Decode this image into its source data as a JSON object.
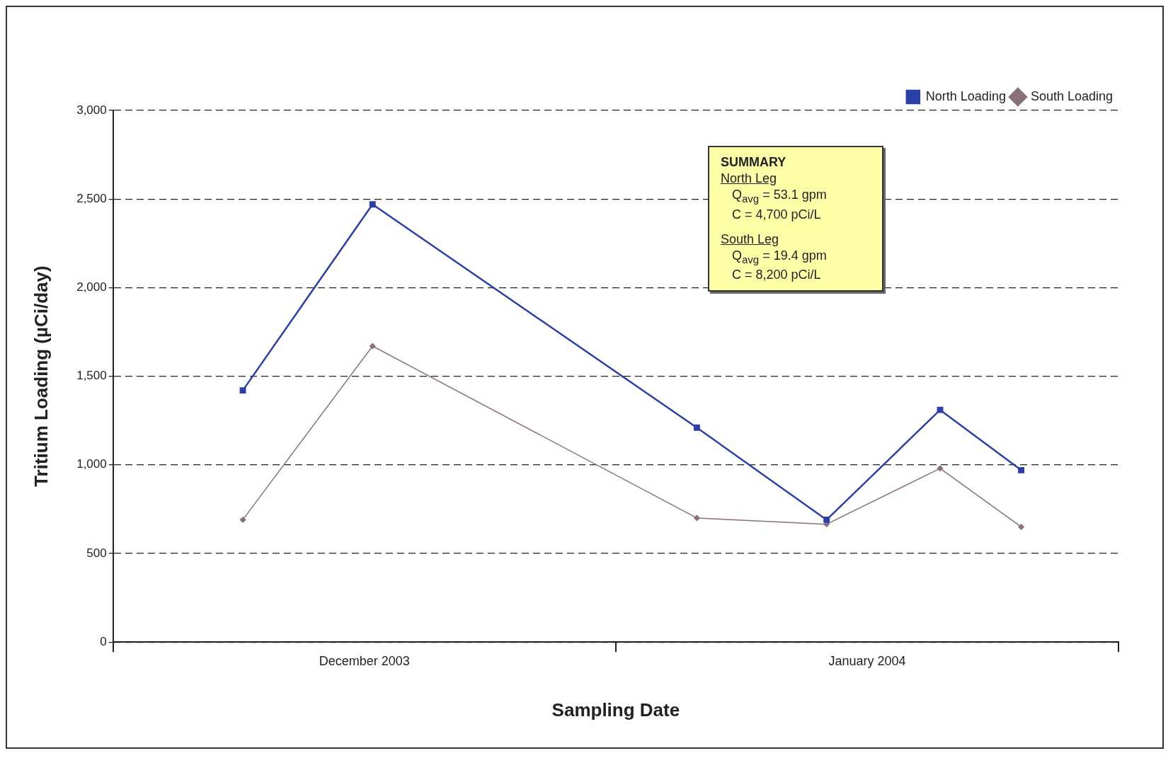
{
  "chart_data": {
    "type": "line",
    "xlabel": "Sampling Date",
    "ylabel": "Tritium Loading (µCi/day)",
    "x": [
      "2003-12-09",
      "2003-12-17",
      "2004-01-06",
      "2004-01-14",
      "2004-01-21",
      "2004-01-26"
    ],
    "xlim": [
      "2003-12-01",
      "2004-02-01"
    ],
    "xticks": [
      {
        "value": "2003-12-01",
        "label": null
      },
      {
        "value": "2003-12-16T12:00",
        "label": "December 2003"
      },
      {
        "value": "2004-01-01",
        "label": null
      },
      {
        "value": "2004-01-16T12:00",
        "label": "January 2004"
      },
      {
        "value": "2004-02-01",
        "label": null
      }
    ],
    "ylim": [
      0,
      3000
    ],
    "yticks": [
      {
        "value": 0,
        "label": "0"
      },
      {
        "value": 500,
        "label": "500"
      },
      {
        "value": 1000,
        "label": "1,000"
      },
      {
        "value": 1500,
        "label": "1,500"
      },
      {
        "value": 2000,
        "label": "2,000"
      },
      {
        "value": 2500,
        "label": "2,500"
      },
      {
        "value": 3000,
        "label": "3,000"
      }
    ],
    "series": [
      {
        "name": "North Loading",
        "color": "#2b3fa8",
        "marker": "square",
        "values": [
          1420,
          2470,
          1210,
          690,
          1310,
          970
        ]
      },
      {
        "name": "South Loading",
        "color": "#8a7078",
        "marker": "diamond",
        "values": [
          690,
          1670,
          700,
          665,
          980,
          650
        ]
      }
    ],
    "grid": "y",
    "legend": "top right",
    "line_style": "solid",
    "annotations": [
      "SUMMARY",
      "North Leg",
      "Q$_{avg}$ = 53.1 gpm",
      "C = 4,700 pCi/L",
      "South Leg",
      "Q$_{avg}$ = 19.4 gpm",
      "C = 8,200 pCi/L"
    ]
  }
}
